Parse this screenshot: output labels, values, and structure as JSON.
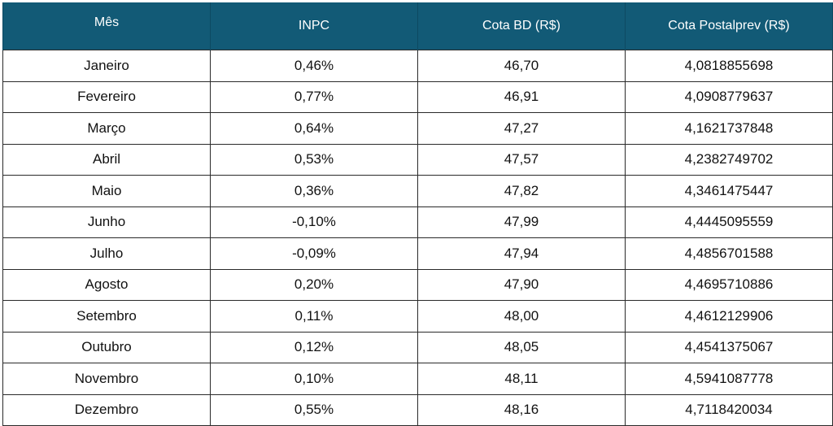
{
  "headers": [
    "Mês",
    "INPC",
    "Cota BD (R$)",
    "Cota Postalprev (R$)"
  ],
  "rows": [
    [
      "Janeiro",
      "0,46%",
      "46,70",
      "4,0818855698"
    ],
    [
      "Fevereiro",
      "0,77%",
      "46,91",
      "4,0908779637"
    ],
    [
      "Março",
      "0,64%",
      "47,27",
      "4,1621737848"
    ],
    [
      "Abril",
      "0,53%",
      "47,57",
      "4,2382749702"
    ],
    [
      "Maio",
      "0,36%",
      "47,82",
      "4,3461475447"
    ],
    [
      "Junho",
      "-0,10%",
      "47,99",
      "4,4445095559"
    ],
    [
      "Julho",
      "-0,09%",
      "47,94",
      "4,4856701588"
    ],
    [
      "Agosto",
      "0,20%",
      "47,90",
      "4,4695710886"
    ],
    [
      "Setembro",
      "0,11%",
      "48,00",
      "4,4612129906"
    ],
    [
      "Outubro",
      "0,12%",
      "48,05",
      "4,4541375067"
    ],
    [
      "Novembro",
      "0,10%",
      "48,11",
      "4,5941087778"
    ],
    [
      "Dezembro",
      "0,55%",
      "48,16",
      "4,7118420034"
    ]
  ],
  "colors": {
    "header_bg": "#125a76",
    "header_text": "#ffffff",
    "border": "#2a2a2a"
  }
}
